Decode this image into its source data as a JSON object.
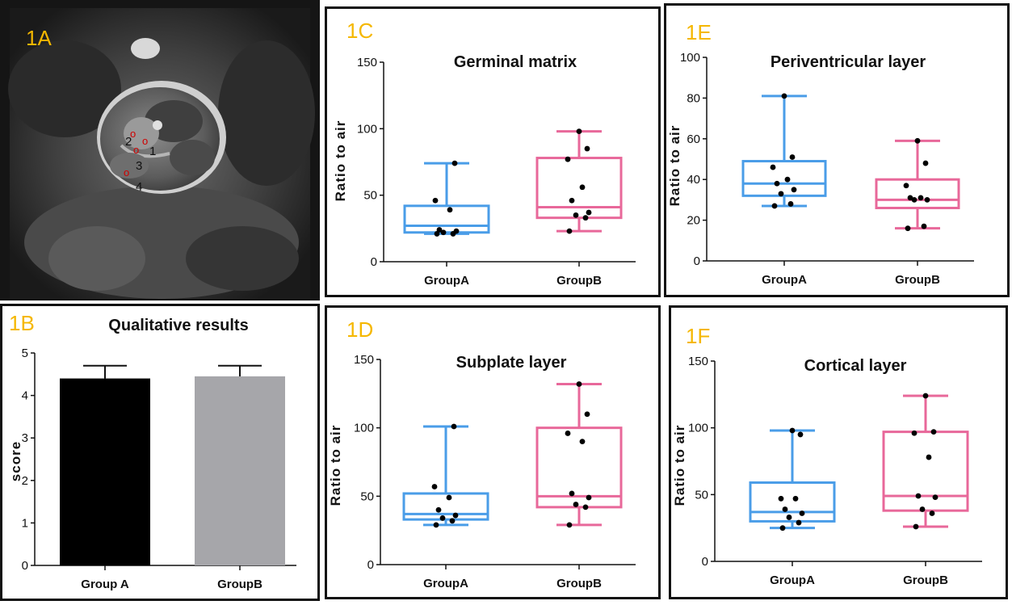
{
  "labels": {
    "a": "1A",
    "b": "1B",
    "c": "1C",
    "d": "1D",
    "e": "1E",
    "f": "1F"
  },
  "mri": {
    "region_numbers": [
      "1",
      "2",
      "3",
      "4"
    ],
    "roi_marker_text": "o",
    "roi_color": "#d00000"
  },
  "colors": {
    "groupA": "#4a9de8",
    "groupB": "#e8689a",
    "bar_groupA": "#000000",
    "bar_groupB": "#a6a6aa",
    "label": "#f5b700"
  },
  "chart_data": [
    {
      "id": "b",
      "type": "bar",
      "title": "Qualitative results",
      "ylabel": "score",
      "xlabel": "",
      "categories": [
        "Group A",
        "GroupB"
      ],
      "values": [
        4.4,
        4.45
      ],
      "errors": [
        0.3,
        0.25
      ],
      "ylim": [
        0,
        5
      ],
      "yticks": [
        "0",
        "1",
        "2",
        "3",
        "4",
        "5"
      ]
    },
    {
      "id": "c",
      "type": "box",
      "title": "Germinal matrix",
      "ylabel": "Ratio to air",
      "categories": [
        "GroupA",
        "GroupB"
      ],
      "ylim": [
        0,
        150
      ],
      "yticks": [
        "0",
        "50",
        "100",
        "150"
      ],
      "boxes": [
        {
          "name": "GroupA",
          "min": 21,
          "q1": 22,
          "median": 27,
          "q3": 42,
          "max": 74,
          "points": [
            21,
            21,
            22,
            23,
            24,
            39,
            46,
            74
          ]
        },
        {
          "name": "GroupB",
          "min": 23,
          "q1": 33,
          "median": 41,
          "q3": 78,
          "max": 98,
          "points": [
            23,
            33,
            35,
            37,
            46,
            56,
            77,
            85,
            98
          ]
        }
      ]
    },
    {
      "id": "d",
      "type": "box",
      "title": "Subplate layer",
      "ylabel": "Ratio to air",
      "categories": [
        "GroupA",
        "GroupB"
      ],
      "ylim": [
        0,
        150
      ],
      "yticks": [
        "0",
        "50",
        "100",
        "150"
      ],
      "boxes": [
        {
          "name": "GroupA",
          "min": 29,
          "q1": 33,
          "median": 37,
          "q3": 52,
          "max": 101,
          "points": [
            29,
            32,
            34,
            36,
            40,
            49,
            57,
            101
          ]
        },
        {
          "name": "GroupB",
          "min": 29,
          "q1": 42,
          "median": 50,
          "q3": 100,
          "max": 132,
          "points": [
            29,
            42,
            44,
            49,
            52,
            90,
            96,
            110,
            132
          ]
        }
      ]
    },
    {
      "id": "e",
      "type": "box",
      "title": "Periventricular layer",
      "ylabel": "Ratio to air",
      "categories": [
        "GroupA",
        "GroupB"
      ],
      "ylim": [
        0,
        100
      ],
      "yticks": [
        "0",
        "20",
        "40",
        "60",
        "80",
        "100"
      ],
      "boxes": [
        {
          "name": "GroupA",
          "min": 27,
          "q1": 32,
          "median": 38,
          "q3": 49,
          "max": 81,
          "points": [
            27,
            28,
            33,
            35,
            38,
            40,
            46,
            51,
            81
          ]
        },
        {
          "name": "GroupB",
          "min": 16,
          "q1": 26,
          "median": 30,
          "q3": 40,
          "max": 59,
          "points": [
            16,
            17,
            30,
            30,
            31,
            31,
            37,
            48,
            59
          ]
        }
      ]
    },
    {
      "id": "f",
      "type": "box",
      "title": "Cortical layer",
      "ylabel": "Ratio to air",
      "categories": [
        "GroupA",
        "GroupB"
      ],
      "ylim": [
        0,
        150
      ],
      "yticks": [
        "0",
        "50",
        "100",
        "150"
      ],
      "boxes": [
        {
          "name": "GroupA",
          "min": 25,
          "q1": 30,
          "median": 37,
          "q3": 59,
          "max": 98,
          "points": [
            25,
            29,
            33,
            36,
            39,
            47,
            47,
            95,
            98
          ]
        },
        {
          "name": "GroupB",
          "min": 26,
          "q1": 38,
          "median": 49,
          "q3": 97,
          "max": 124,
          "points": [
            26,
            36,
            39,
            48,
            49,
            78,
            96,
            97,
            124
          ]
        }
      ]
    }
  ]
}
